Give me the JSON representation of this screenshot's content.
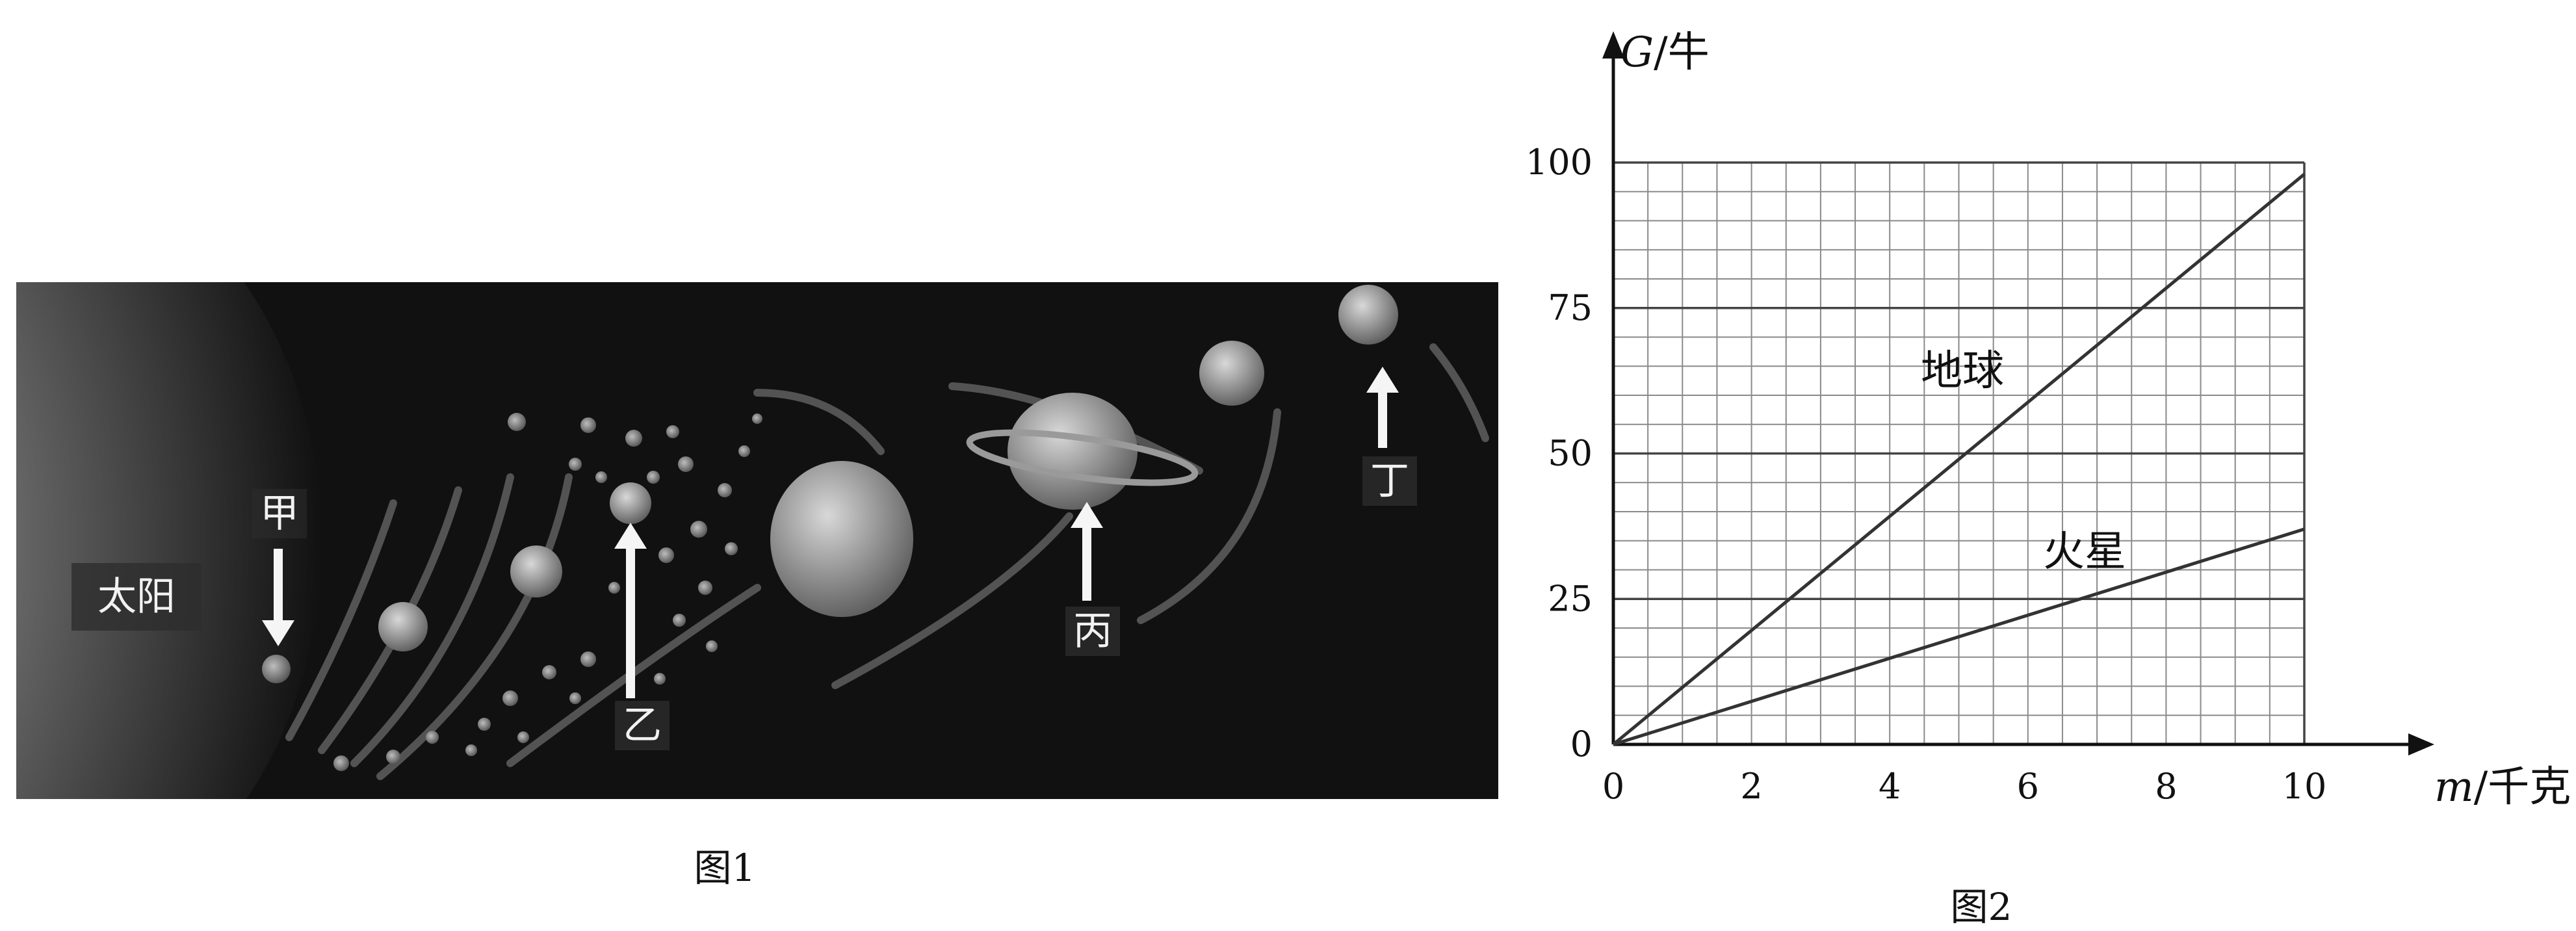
{
  "figure1": {
    "caption": "图1",
    "sun_label": "太阳",
    "planet_labels": [
      "甲",
      "乙",
      "丙",
      "丁"
    ]
  },
  "figure2": {
    "caption": "图2"
  },
  "chart_data": {
    "type": "line",
    "xlabel": {
      "var": "m",
      "unit": "/千克"
    },
    "ylabel": {
      "var": "G",
      "unit": "/牛"
    },
    "xlim": [
      0,
      10
    ],
    "ylim": [
      0,
      100
    ],
    "x_ticks": [
      0,
      2,
      4,
      6,
      8,
      10
    ],
    "y_ticks": [
      0,
      25,
      50,
      75,
      100
    ],
    "grid": true,
    "grid_minor_x": 0.5,
    "grid_minor_y": 5,
    "series": [
      {
        "name": "地球",
        "x": [
          0,
          10
        ],
        "y": [
          0,
          98
        ],
        "color": "#333333"
      },
      {
        "name": "火星",
        "x": [
          0,
          10
        ],
        "y": [
          0,
          37
        ],
        "color": "#333333"
      }
    ]
  }
}
